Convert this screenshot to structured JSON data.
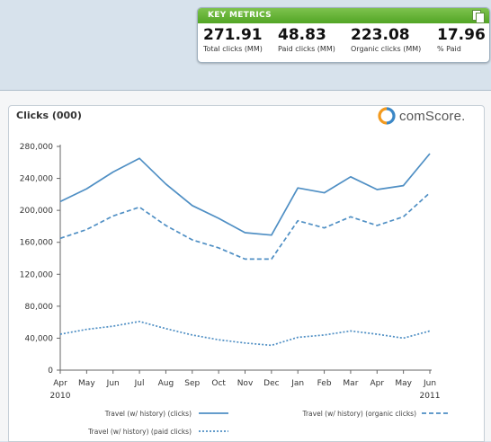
{
  "metrics": {
    "header": "KEY METRICS",
    "items": [
      {
        "value": "271.91",
        "label": "Total clicks (MM)"
      },
      {
        "value": "48.83",
        "label": "Paid clicks (MM)"
      },
      {
        "value": "223.08",
        "label": "Organic clicks (MM)"
      },
      {
        "value": "17.96",
        "label": "% Paid"
      }
    ]
  },
  "logo": {
    "text": "comScore."
  },
  "colors": {
    "line": "#4f8fc4",
    "accent": "#5bab2e"
  },
  "chart_data": {
    "type": "line",
    "title": "Clicks (000)",
    "x": [
      "Apr",
      "May",
      "Jun",
      "Jul",
      "Aug",
      "Sep",
      "Oct",
      "Nov",
      "Dec",
      "Jan",
      "Feb",
      "Mar",
      "Apr",
      "May",
      "Jun"
    ],
    "year_labels": [
      "2010",
      "2011"
    ],
    "ylim": [
      0,
      280000
    ],
    "yticks": [
      "0",
      "40,000",
      "80,000",
      "120,000",
      "160,000",
      "200,000",
      "240,000",
      "280,000"
    ],
    "ytick_values": [
      0,
      40000,
      80000,
      120000,
      160000,
      200000,
      240000,
      280000
    ],
    "grid": false,
    "legend": "bottom",
    "series": [
      {
        "name": "Travel (w/ history) (clicks)",
        "style": "solid",
        "values": [
          211000,
          227000,
          248000,
          265000,
          233000,
          206000,
          190000,
          172000,
          169000,
          228000,
          222000,
          242000,
          226000,
          231000,
          271000
        ]
      },
      {
        "name": "Travel (w/ history) (organic clicks)",
        "style": "dashed",
        "values": [
          165000,
          176000,
          193000,
          204000,
          181000,
          163000,
          153000,
          139000,
          139000,
          187000,
          178000,
          192000,
          181000,
          192000,
          222000
        ]
      },
      {
        "name": "Travel (w/ history) (paid clicks)",
        "style": "dotted",
        "values": [
          45000,
          51000,
          55000,
          61000,
          52000,
          44000,
          38000,
          34000,
          31000,
          41000,
          44000,
          49000,
          45000,
          40000,
          49000
        ]
      }
    ]
  }
}
